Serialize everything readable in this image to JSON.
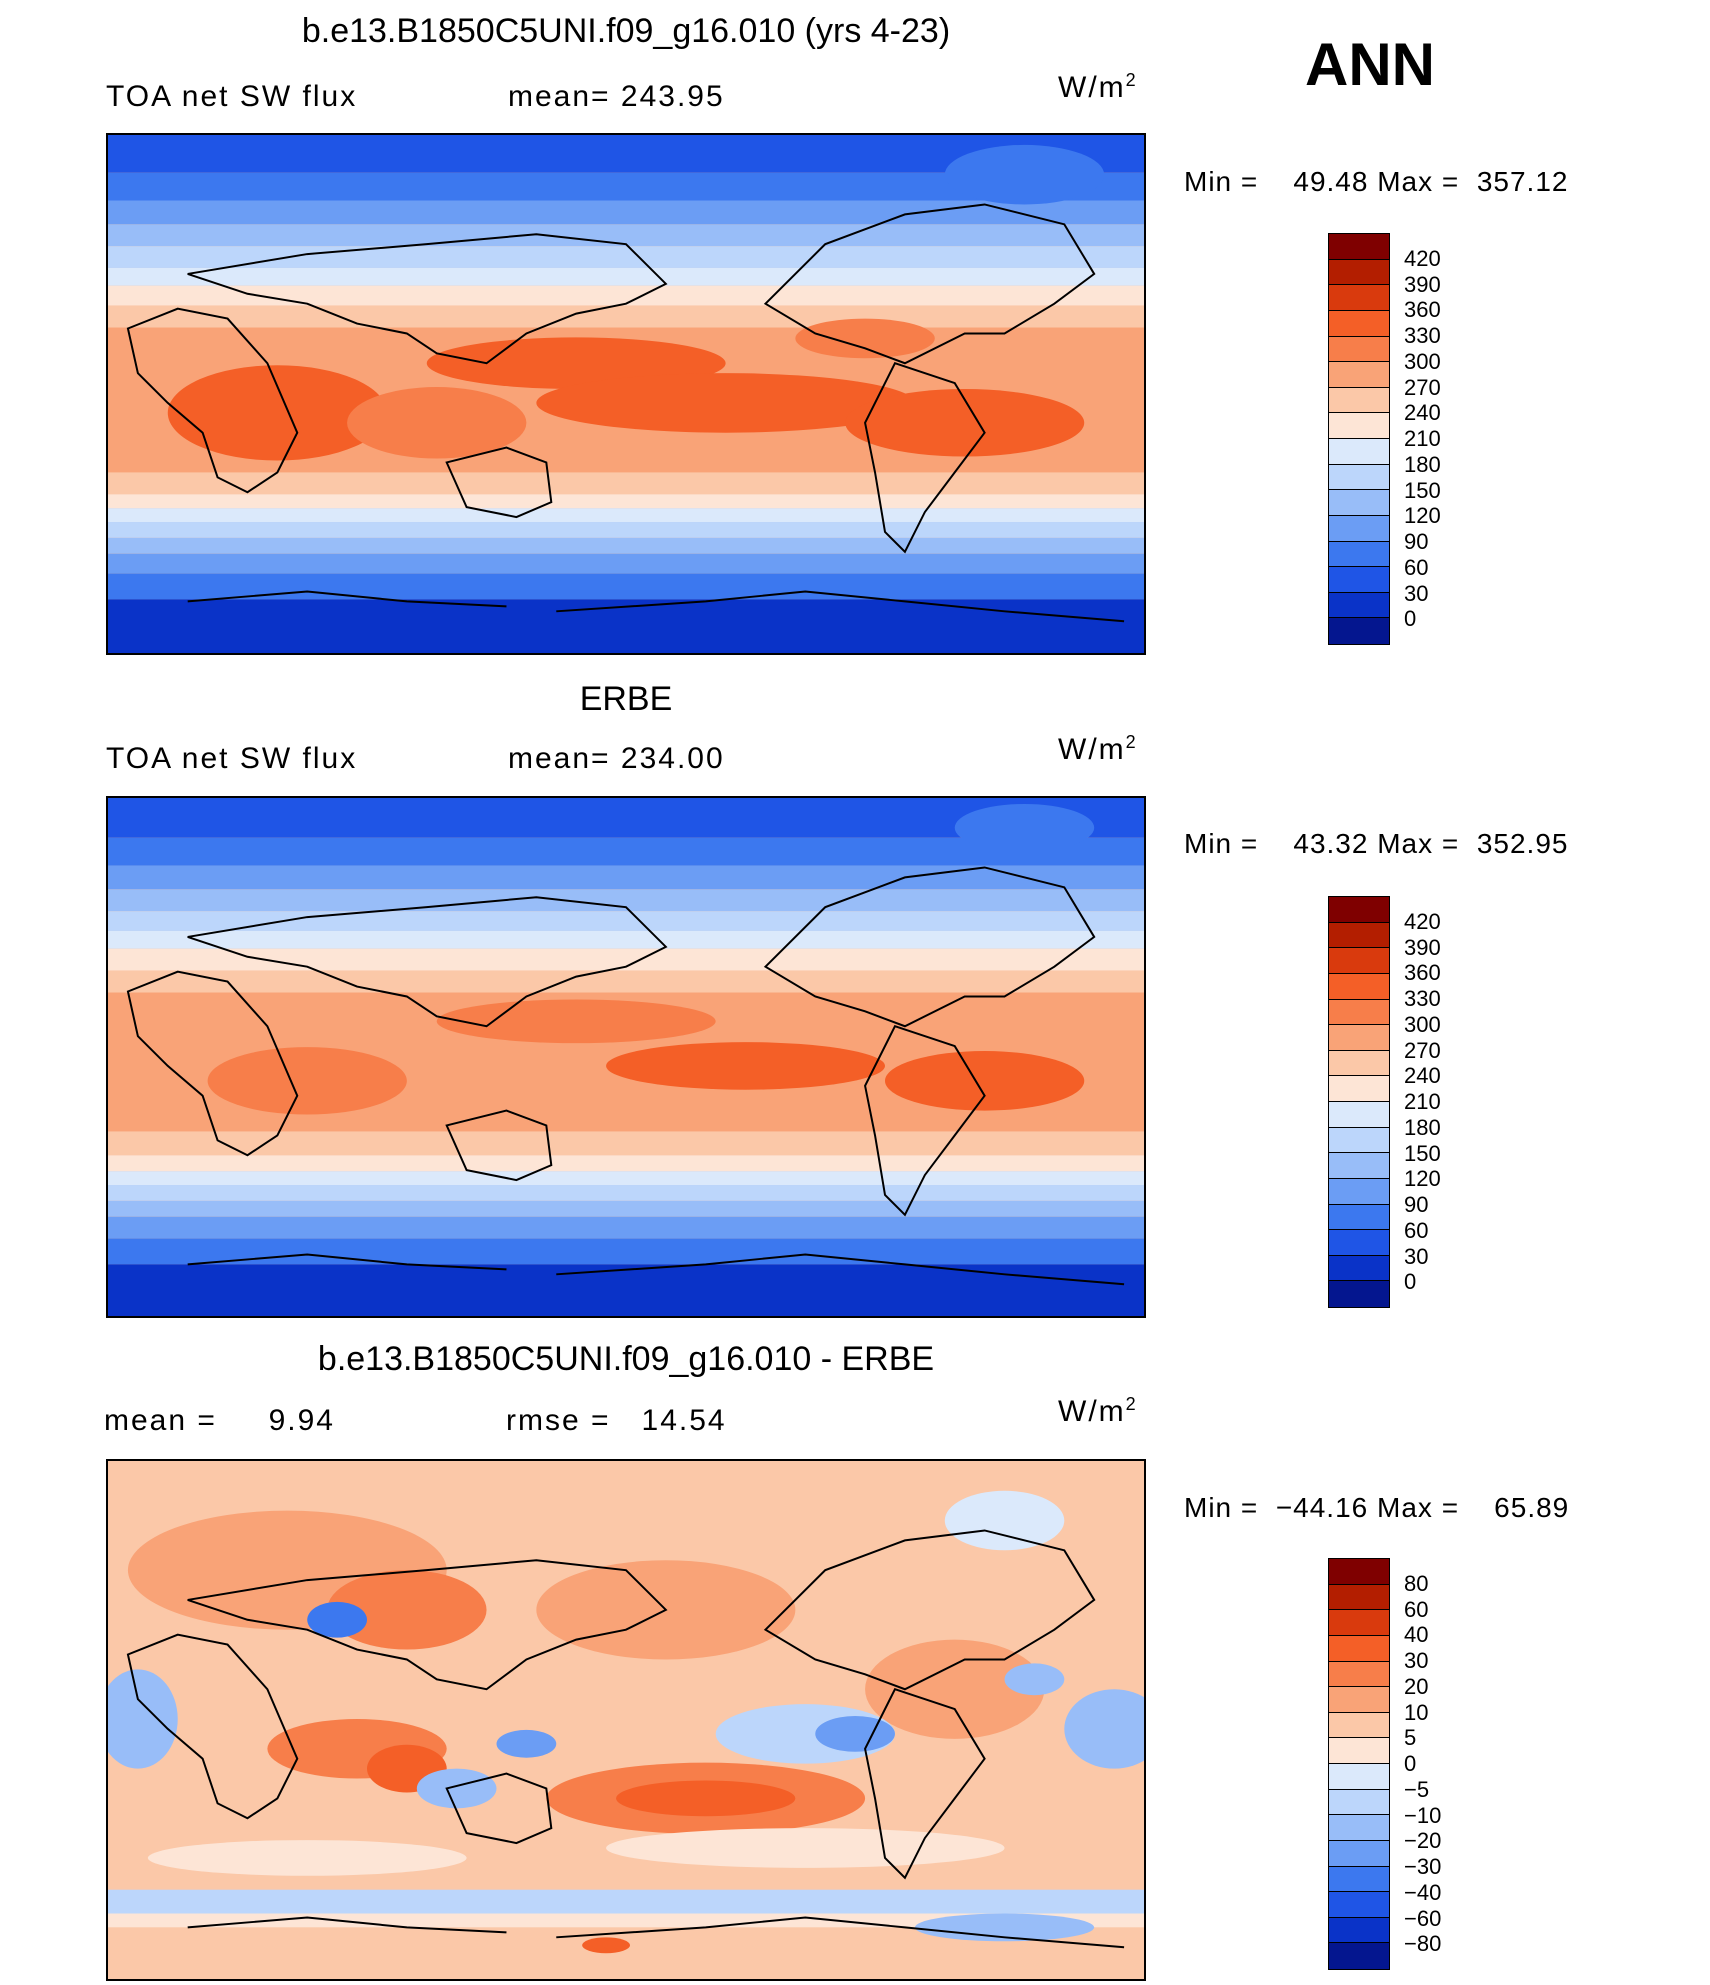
{
  "season": "ANN",
  "panels": [
    {
      "id": "model",
      "title": "b.e13.B1850C5UNI.f09_g16.010 (yrs 4-23)",
      "variable": "TOA net SW flux",
      "stat_label": "mean=",
      "stat_value": "243.95",
      "units_base": "W/m",
      "units_exp": "2",
      "min_label": "Min =",
      "min_value": "49.48",
      "max_label": "Max =",
      "max_value": "357.12",
      "colorbar_labels": [
        "420",
        "390",
        "360",
        "330",
        "300",
        "270",
        "240",
        "210",
        "180",
        "150",
        "120",
        "90",
        "60",
        "30",
        "0"
      ]
    },
    {
      "id": "obs",
      "title": "ERBE",
      "variable": "TOA net SW flux",
      "stat_label": "mean=",
      "stat_value": "234.00",
      "units_base": "W/m",
      "units_exp": "2",
      "min_label": "Min =",
      "min_value": "43.32",
      "max_label": "Max =",
      "max_value": "352.95",
      "colorbar_labels": [
        "420",
        "390",
        "360",
        "330",
        "300",
        "270",
        "240",
        "210",
        "180",
        "150",
        "120",
        "90",
        "60",
        "30",
        "0"
      ]
    },
    {
      "id": "diff",
      "title": "b.e13.B1850C5UNI.f09_g16.010 - ERBE",
      "mean_label": "mean =",
      "mean_value": "9.94",
      "rmse_label": "rmse =",
      "rmse_value": "14.54",
      "units_base": "W/m",
      "units_exp": "2",
      "min_label": "Min =",
      "min_value": "−44.16",
      "max_label": "Max =",
      "max_value": "65.89",
      "colorbar_labels": [
        "80",
        "60",
        "40",
        "30",
        "20",
        "10",
        "5",
        "0",
        "−5",
        "−10",
        "−20",
        "−30",
        "−40",
        "−60",
        "−80"
      ]
    }
  ],
  "colors": {
    "sw_scale": [
      "#7f0000",
      "#b31e00",
      "#d93a0d",
      "#f45f27",
      "#f77e4a",
      "#f9a377",
      "#fbc8a8",
      "#fde5d6",
      "#dbe9fb",
      "#bcd6fb",
      "#98bdf8",
      "#6b9df4",
      "#3c78ef",
      "#1f55e6",
      "#0a33c8",
      "#04168f"
    ],
    "diff_scale": [
      "#7f0000",
      "#b31e00",
      "#d93a0d",
      "#f45f27",
      "#f77e4a",
      "#f9a377",
      "#fbc8a8",
      "#fde5d6",
      "#dbe9fb",
      "#bcd6fb",
      "#98bdf8",
      "#6b9df4",
      "#3c78ef",
      "#1f55e6",
      "#0a33c8",
      "#04168f"
    ]
  }
}
